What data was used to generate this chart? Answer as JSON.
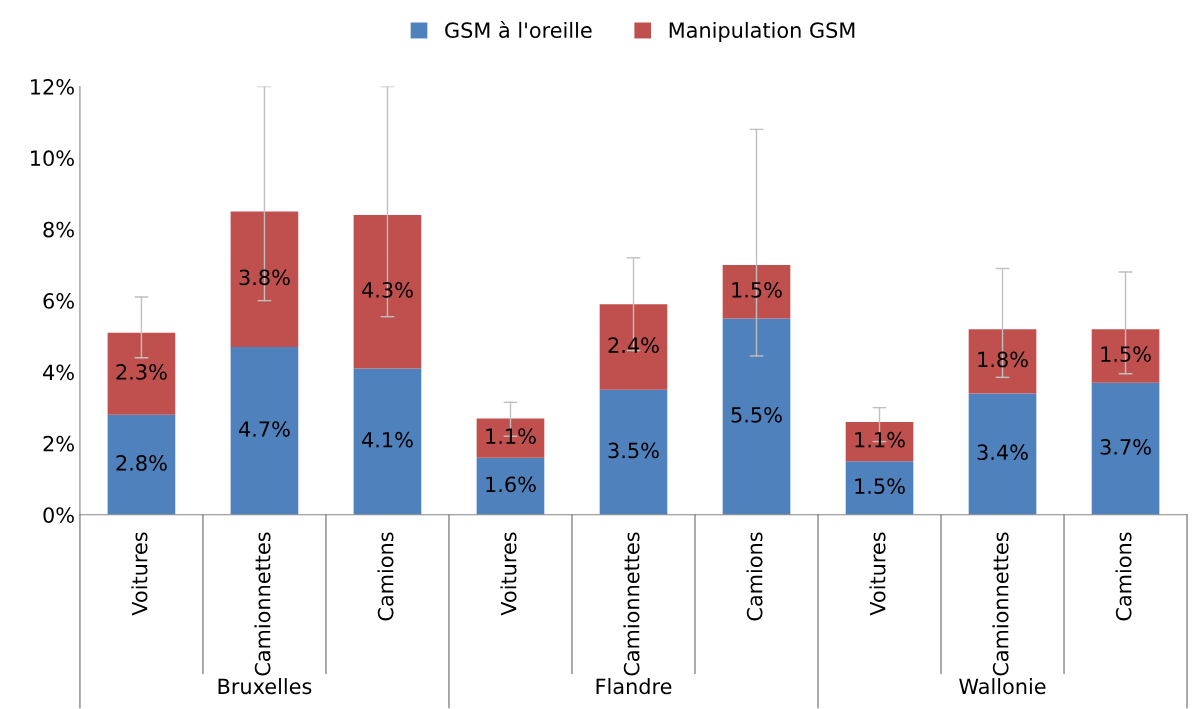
{
  "chart_data": {
    "type": "bar",
    "stacked": true,
    "categories": [
      "Voitures",
      "Camionnettes",
      "Camions",
      "Voitures",
      "Camionnettes",
      "Camions",
      "Voitures",
      "Camionnettes",
      "Camions"
    ],
    "annotations": [
      "Bruxelles",
      "Flandre",
      "Wallonie"
    ],
    "series": [
      {
        "name": "GSM à l'oreille",
        "color": "#4f81bd",
        "values": [
          2.8,
          4.7,
          4.1,
          1.6,
          3.5,
          5.5,
          1.5,
          3.4,
          3.7
        ],
        "value_labels": [
          "2.8%",
          "4.7%",
          "4.1%",
          "1.6%",
          "3.5%",
          "5.5%",
          "1.5%",
          "3.4%",
          "3.7%"
        ]
      },
      {
        "name": "Manipulation GSM",
        "color": "#c0504d",
        "values": [
          2.3,
          3.8,
          4.3,
          1.1,
          2.4,
          1.5,
          1.1,
          1.8,
          1.5
        ],
        "value_labels": [
          "2.3%",
          "3.8%",
          "4.3%",
          "1.1%",
          "2.4%",
          "1.5%",
          "1.1%",
          "1.8%",
          "1.5%"
        ],
        "errors": [
          [
            4.4,
            6.1
          ],
          [
            6.0,
            12
          ],
          [
            5.55,
            12
          ],
          [
            2.2,
            3.15
          ],
          [
            4.6,
            7.2
          ],
          [
            4.45,
            10.8
          ],
          [
            2.05,
            3.0
          ],
          [
            3.85,
            6.9
          ],
          [
            3.95,
            6.8
          ]
        ]
      }
    ],
    "ylim": [
      0,
      12
    ],
    "yticks": [
      {
        "value": 0,
        "label": "0%"
      },
      {
        "value": 2,
        "label": "2%"
      },
      {
        "value": 4,
        "label": "4%"
      },
      {
        "value": 6,
        "label": "6%"
      },
      {
        "value": 8,
        "label": "8%"
      },
      {
        "value": 10,
        "label": "10%"
      },
      {
        "value": 12,
        "label": "12%"
      }
    ],
    "grid": false,
    "legend": "top"
  }
}
